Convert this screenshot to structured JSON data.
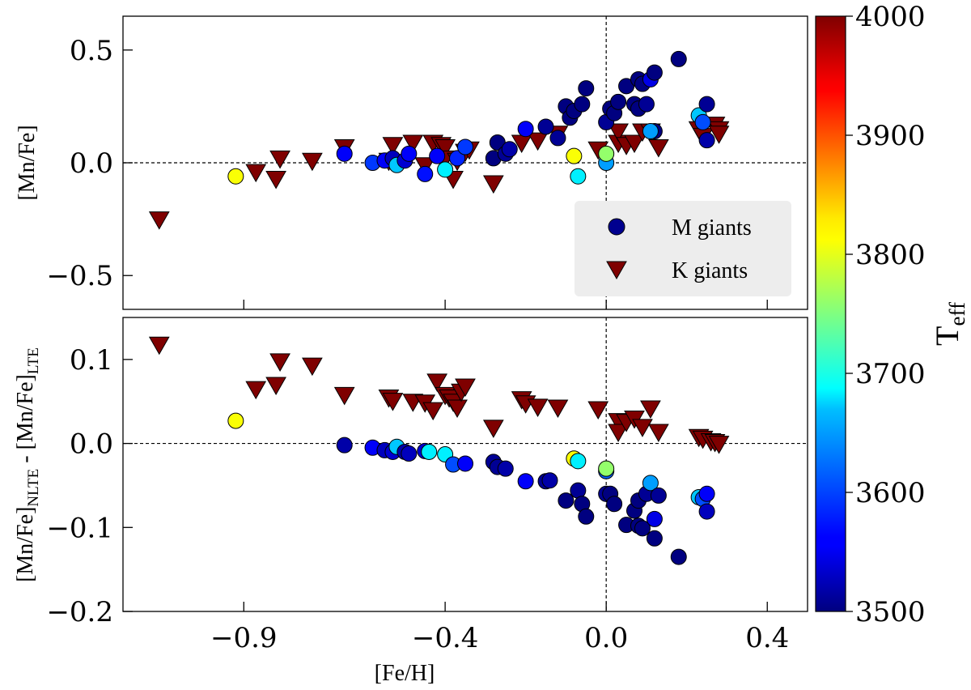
{
  "chart_data": [
    {
      "type": "scatter",
      "panel": "top",
      "ylabel": "[Mn/Fe]",
      "xlabel": "",
      "xlim": [
        -1.2,
        0.5
      ],
      "ylim": [
        -0.65,
        0.65
      ],
      "xticks": [
        -0.9,
        -0.4,
        0.0,
        0.4
      ],
      "yticks": [
        -0.5,
        0.0,
        0.5
      ],
      "ytick_labels": [
        "−0.5",
        "0.0",
        "0.5"
      ],
      "reference_lines": {
        "x": 0.0,
        "y": 0.0
      },
      "legend": {
        "position": "lower-right",
        "entries": [
          "M giants",
          "K giants"
        ]
      },
      "series": [
        {
          "name": "M giants",
          "marker": "circle",
          "points": [
            {
              "x": -0.65,
              "y": 0.04,
              "teff": 3560
            },
            {
              "x": -0.58,
              "y": 0.0,
              "teff": 3590
            },
            {
              "x": -0.55,
              "y": 0.01,
              "teff": 3560
            },
            {
              "x": -0.53,
              "y": 0.02,
              "teff": 3530
            },
            {
              "x": -0.52,
              "y": -0.01,
              "teff": 3660
            },
            {
              "x": -0.5,
              "y": 0.01,
              "teff": 3540
            },
            {
              "x": -0.49,
              "y": 0.04,
              "teff": 3560
            },
            {
              "x": -0.45,
              "y": -0.05,
              "teff": 3570
            },
            {
              "x": -0.42,
              "y": 0.03,
              "teff": 3560
            },
            {
              "x": -0.4,
              "y": -0.03,
              "teff": 3680
            },
            {
              "x": -0.37,
              "y": 0.02,
              "teff": 3580
            },
            {
              "x": -0.35,
              "y": 0.07,
              "teff": 3590
            },
            {
              "x": -0.28,
              "y": 0.02,
              "teff": 3500
            },
            {
              "x": -0.27,
              "y": 0.09,
              "teff": 3500
            },
            {
              "x": -0.25,
              "y": 0.04,
              "teff": 3510
            },
            {
              "x": -0.24,
              "y": 0.06,
              "teff": 3520
            },
            {
              "x": -0.2,
              "y": 0.15,
              "teff": 3560
            },
            {
              "x": -0.15,
              "y": 0.16,
              "teff": 3510
            },
            {
              "x": -0.12,
              "y": 0.11,
              "teff": 3510
            },
            {
              "x": -0.1,
              "y": 0.25,
              "teff": 3500
            },
            {
              "x": -0.09,
              "y": 0.2,
              "teff": 3500
            },
            {
              "x": -0.08,
              "y": 0.23,
              "teff": 3500
            },
            {
              "x": -0.06,
              "y": 0.26,
              "teff": 3500
            },
            {
              "x": -0.05,
              "y": 0.33,
              "teff": 3500
            },
            {
              "x": -0.08,
              "y": 0.03,
              "teff": 3810
            },
            {
              "x": -0.07,
              "y": -0.06,
              "teff": 3680
            },
            {
              "x": 0.0,
              "y": 0.18,
              "teff": 3510
            },
            {
              "x": 0.01,
              "y": 0.24,
              "teff": 3500
            },
            {
              "x": 0.02,
              "y": 0.22,
              "teff": 3500
            },
            {
              "x": 0.03,
              "y": 0.27,
              "teff": 3500
            },
            {
              "x": 0.0,
              "y": 0.0,
              "teff": 3640
            },
            {
              "x": 0.0,
              "y": 0.04,
              "teff": 3760
            },
            {
              "x": 0.05,
              "y": 0.34,
              "teff": 3500
            },
            {
              "x": 0.07,
              "y": 0.26,
              "teff": 3500
            },
            {
              "x": 0.08,
              "y": 0.24,
              "teff": 3500
            },
            {
              "x": 0.08,
              "y": 0.37,
              "teff": 3500
            },
            {
              "x": 0.09,
              "y": 0.35,
              "teff": 3500
            },
            {
              "x": 0.1,
              "y": 0.26,
              "teff": 3510
            },
            {
              "x": 0.11,
              "y": 0.37,
              "teff": 3550
            },
            {
              "x": 0.12,
              "y": 0.4,
              "teff": 3500
            },
            {
              "x": 0.12,
              "y": 0.14,
              "teff": 3500
            },
            {
              "x": 0.11,
              "y": 0.14,
              "teff": 3640
            },
            {
              "x": 0.18,
              "y": 0.46,
              "teff": 3500
            },
            {
              "x": 0.23,
              "y": 0.21,
              "teff": 3660
            },
            {
              "x": 0.24,
              "y": 0.18,
              "teff": 3600
            },
            {
              "x": 0.25,
              "y": 0.26,
              "teff": 3510
            },
            {
              "x": 0.25,
              "y": 0.1,
              "teff": 3520
            },
            {
              "x": -0.92,
              "y": -0.06,
              "teff": 3810
            }
          ]
        },
        {
          "name": "K giants",
          "marker": "triangle-down",
          "points": [
            {
              "x": -1.11,
              "y": -0.25
            },
            {
              "x": -0.87,
              "y": -0.04
            },
            {
              "x": -0.82,
              "y": -0.07
            },
            {
              "x": -0.81,
              "y": 0.02
            },
            {
              "x": -0.73,
              "y": 0.01
            },
            {
              "x": -0.65,
              "y": 0.07
            },
            {
              "x": -0.54,
              "y": 0.01
            },
            {
              "x": -0.53,
              "y": 0.08
            },
            {
              "x": -0.48,
              "y": 0.09
            },
            {
              "x": -0.45,
              "y": -0.01
            },
            {
              "x": -0.43,
              "y": 0.09
            },
            {
              "x": -0.41,
              "y": 0.08
            },
            {
              "x": -0.4,
              "y": 0.07
            },
            {
              "x": -0.4,
              "y": 0.02
            },
            {
              "x": -0.38,
              "y": -0.07
            },
            {
              "x": -0.37,
              "y": 0.01
            },
            {
              "x": -0.35,
              "y": 0.05
            },
            {
              "x": -0.34,
              "y": 0.06
            },
            {
              "x": -0.28,
              "y": -0.09
            },
            {
              "x": -0.21,
              "y": 0.09
            },
            {
              "x": -0.17,
              "y": 0.1
            },
            {
              "x": -0.12,
              "y": 0.13
            },
            {
              "x": -0.02,
              "y": 0.06
            },
            {
              "x": 0.03,
              "y": 0.09
            },
            {
              "x": 0.03,
              "y": 0.14
            },
            {
              "x": 0.05,
              "y": 0.08
            },
            {
              "x": 0.07,
              "y": 0.09
            },
            {
              "x": 0.09,
              "y": 0.14
            },
            {
              "x": 0.11,
              "y": 0.14
            },
            {
              "x": 0.13,
              "y": 0.07
            },
            {
              "x": 0.23,
              "y": 0.15
            },
            {
              "x": 0.24,
              "y": 0.12
            },
            {
              "x": 0.27,
              "y": 0.17
            },
            {
              "x": 0.28,
              "y": 0.15
            },
            {
              "x": 0.28,
              "y": 0.13
            }
          ]
        }
      ]
    },
    {
      "type": "scatter",
      "panel": "bottom",
      "ylabel": "[Mn/Fe]NLTE - [Mn/Fe]LTE",
      "ylabel_parts": {
        "a": "[Mn/Fe]",
        "sub1": "NLTE",
        "mid": " - [Mn/Fe]",
        "sub2": "LTE"
      },
      "xlabel": "[Fe/H]",
      "xlim": [
        -1.2,
        0.5
      ],
      "ylim": [
        -0.2,
        0.15
      ],
      "xticks": [
        -0.9,
        -0.4,
        0.0,
        0.4
      ],
      "xtick_labels": [
        "−0.9",
        "−0.4",
        "0.0",
        "0.4"
      ],
      "yticks": [
        -0.2,
        -0.1,
        0.0,
        0.1
      ],
      "ytick_labels": [
        "−0.2",
        "−0.1",
        "0.0",
        "0.1"
      ],
      "reference_lines": {
        "x": 0.0,
        "y": 0.0
      },
      "series": [
        {
          "name": "M giants",
          "marker": "circle",
          "points": [
            {
              "x": -0.92,
              "y": 0.027,
              "teff": 3810
            },
            {
              "x": -0.65,
              "y": -0.002,
              "teff": 3520
            },
            {
              "x": -0.58,
              "y": -0.005,
              "teff": 3560
            },
            {
              "x": -0.55,
              "y": -0.008,
              "teff": 3530
            },
            {
              "x": -0.53,
              "y": -0.01,
              "teff": 3540
            },
            {
              "x": -0.52,
              "y": -0.004,
              "teff": 3660
            },
            {
              "x": -0.5,
              "y": -0.01,
              "teff": 3520
            },
            {
              "x": -0.49,
              "y": -0.012,
              "teff": 3530
            },
            {
              "x": -0.45,
              "y": -0.009,
              "teff": 3540
            },
            {
              "x": -0.44,
              "y": -0.01,
              "teff": 3680
            },
            {
              "x": -0.4,
              "y": -0.013,
              "teff": 3680
            },
            {
              "x": -0.38,
              "y": -0.025,
              "teff": 3600
            },
            {
              "x": -0.35,
              "y": -0.024,
              "teff": 3560
            },
            {
              "x": -0.28,
              "y": -0.022,
              "teff": 3510
            },
            {
              "x": -0.27,
              "y": -0.028,
              "teff": 3510
            },
            {
              "x": -0.25,
              "y": -0.03,
              "teff": 3520
            },
            {
              "x": -0.2,
              "y": -0.045,
              "teff": 3560
            },
            {
              "x": -0.15,
              "y": -0.045,
              "teff": 3510
            },
            {
              "x": -0.14,
              "y": -0.044,
              "teff": 3520
            },
            {
              "x": -0.1,
              "y": -0.068,
              "teff": 3500
            },
            {
              "x": -0.07,
              "y": -0.056,
              "teff": 3510
            },
            {
              "x": -0.06,
              "y": -0.072,
              "teff": 3500
            },
            {
              "x": -0.05,
              "y": -0.087,
              "teff": 3500
            },
            {
              "x": -0.08,
              "y": -0.018,
              "teff": 3810
            },
            {
              "x": -0.07,
              "y": -0.021,
              "teff": 3680
            },
            {
              "x": 0.0,
              "y": -0.06,
              "teff": 3510
            },
            {
              "x": 0.01,
              "y": -0.06,
              "teff": 3500
            },
            {
              "x": 0.02,
              "y": -0.072,
              "teff": 3500
            },
            {
              "x": 0.0,
              "y": -0.033,
              "teff": 3610
            },
            {
              "x": 0.0,
              "y": -0.03,
              "teff": 3760
            },
            {
              "x": 0.05,
              "y": -0.097,
              "teff": 3500
            },
            {
              "x": 0.07,
              "y": -0.08,
              "teff": 3500
            },
            {
              "x": 0.08,
              "y": -0.068,
              "teff": 3500
            },
            {
              "x": 0.08,
              "y": -0.098,
              "teff": 3500
            },
            {
              "x": 0.09,
              "y": -0.101,
              "teff": 3500
            },
            {
              "x": 0.1,
              "y": -0.06,
              "teff": 3510
            },
            {
              "x": 0.11,
              "y": -0.047,
              "teff": 3640
            },
            {
              "x": 0.12,
              "y": -0.09,
              "teff": 3550
            },
            {
              "x": 0.12,
              "y": -0.113,
              "teff": 3500
            },
            {
              "x": 0.13,
              "y": -0.062,
              "teff": 3510
            },
            {
              "x": 0.18,
              "y": -0.135,
              "teff": 3500
            },
            {
              "x": 0.23,
              "y": -0.064,
              "teff": 3660
            },
            {
              "x": 0.24,
              "y": -0.066,
              "teff": 3600
            },
            {
              "x": 0.25,
              "y": -0.06,
              "teff": 3560
            },
            {
              "x": 0.25,
              "y": -0.081,
              "teff": 3530
            }
          ]
        },
        {
          "name": "K giants",
          "marker": "triangle-down",
          "points": [
            {
              "x": -1.11,
              "y": 0.118
            },
            {
              "x": -0.87,
              "y": 0.065
            },
            {
              "x": -0.82,
              "y": 0.07
            },
            {
              "x": -0.81,
              "y": 0.098
            },
            {
              "x": -0.73,
              "y": 0.093
            },
            {
              "x": -0.65,
              "y": 0.058
            },
            {
              "x": -0.54,
              "y": 0.055
            },
            {
              "x": -0.53,
              "y": 0.051
            },
            {
              "x": -0.48,
              "y": 0.05
            },
            {
              "x": -0.45,
              "y": 0.049
            },
            {
              "x": -0.43,
              "y": 0.04
            },
            {
              "x": -0.42,
              "y": 0.074
            },
            {
              "x": -0.4,
              "y": 0.058
            },
            {
              "x": -0.39,
              "y": 0.055
            },
            {
              "x": -0.38,
              "y": 0.05
            },
            {
              "x": -0.37,
              "y": 0.043
            },
            {
              "x": -0.36,
              "y": 0.062
            },
            {
              "x": -0.35,
              "y": 0.068
            },
            {
              "x": -0.28,
              "y": 0.019
            },
            {
              "x": -0.21,
              "y": 0.053
            },
            {
              "x": -0.2,
              "y": 0.048
            },
            {
              "x": -0.17,
              "y": 0.044
            },
            {
              "x": -0.12,
              "y": 0.043
            },
            {
              "x": -0.02,
              "y": 0.041
            },
            {
              "x": 0.03,
              "y": 0.027
            },
            {
              "x": 0.03,
              "y": 0.014
            },
            {
              "x": 0.05,
              "y": 0.026
            },
            {
              "x": 0.07,
              "y": 0.03
            },
            {
              "x": 0.09,
              "y": 0.02
            },
            {
              "x": 0.11,
              "y": 0.042
            },
            {
              "x": 0.13,
              "y": 0.014
            },
            {
              "x": 0.23,
              "y": 0.008
            },
            {
              "x": 0.24,
              "y": 0.006
            },
            {
              "x": 0.26,
              "y": 0.003
            },
            {
              "x": 0.27,
              "y": 0.002
            },
            {
              "x": 0.28,
              "y": 0.0
            }
          ]
        }
      ]
    }
  ],
  "colorbar": {
    "title_main": "T",
    "title_sub": "eff",
    "min": 3500,
    "max": 4000,
    "ticks": [
      3500,
      3600,
      3700,
      3800,
      3900,
      4000
    ],
    "tick_labels": [
      "3500",
      "3600",
      "3700",
      "3800",
      "3900",
      "4000"
    ],
    "colormap": "jet"
  },
  "colors": {
    "k_giants": "#7f0000",
    "axes": "#000000",
    "legend_bg": "#ededed"
  }
}
